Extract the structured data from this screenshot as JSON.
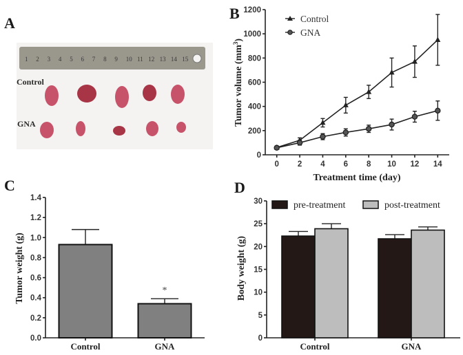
{
  "figure": {
    "panels": [
      "A",
      "B",
      "C",
      "D"
    ]
  },
  "photo": {
    "panel_label": "A",
    "row_labels": [
      "Control",
      "GNA"
    ],
    "ruler_numbers": [
      "1",
      "2",
      "3",
      "4",
      "5",
      "6",
      "7",
      "8",
      "9",
      "10",
      "11",
      "12",
      "13",
      "14",
      "15"
    ],
    "colors": {
      "background": "#f4f3f1",
      "ruler": "#9a978d",
      "tumor": "#c7536a",
      "tumor_dark": "#a83546"
    },
    "tumors_per_row": 5
  },
  "chart_data": [
    {
      "panel_label": "B",
      "type": "line",
      "title": "",
      "xlabel": "Treatment time (day)",
      "ylabel": "Tumor volume (mm3)",
      "ylabel_main": "Tumor volume (mm",
      "ylabel_sup": "3",
      "ylabel_close": ")",
      "x": [
        0,
        2,
        4,
        6,
        8,
        10,
        12,
        14
      ],
      "xlim": [
        -1,
        15
      ],
      "ylim": [
        0,
        1200
      ],
      "xticks": [
        0,
        2,
        4,
        6,
        8,
        10,
        12,
        14
      ],
      "yticks": [
        0,
        200,
        400,
        600,
        800,
        1000,
        1200
      ],
      "grid": false,
      "legend_position": "top-left",
      "series": [
        {
          "name": "Control",
          "marker": "triangle",
          "values": [
            60,
            120,
            265,
            410,
            520,
            680,
            770,
            950
          ],
          "errors": [
            12,
            20,
            35,
            65,
            55,
            120,
            130,
            210
          ]
        },
        {
          "name": "GNA",
          "marker": "circle",
          "values": [
            58,
            100,
            150,
            185,
            215,
            250,
            315,
            365
          ],
          "errors": [
            10,
            20,
            25,
            30,
            30,
            45,
            45,
            80
          ]
        }
      ]
    },
    {
      "panel_label": "C",
      "type": "bar",
      "title": "",
      "xlabel": "",
      "ylabel": "Tumor weight (g)",
      "categories": [
        "Control",
        "GNA"
      ],
      "values": [
        0.93,
        0.34
      ],
      "errors": [
        0.15,
        0.05
      ],
      "ylim": [
        0,
        1.4
      ],
      "yticks": [
        "0.0",
        "0.2",
        "0.4",
        "0.6",
        "0.8",
        "1.0",
        "1.2",
        "1.4"
      ],
      "annotations": [
        {
          "category": "GNA",
          "text": "*"
        }
      ],
      "color": "#808080",
      "grid": false
    },
    {
      "panel_label": "D",
      "type": "bar",
      "title": "",
      "xlabel": "",
      "ylabel": "Body weight (g)",
      "categories": [
        "Control",
        "GNA"
      ],
      "ylim": [
        0,
        30
      ],
      "yticks": [
        "0",
        "5",
        "10",
        "15",
        "20",
        "25",
        "30"
      ],
      "grid": false,
      "legend_position": "top",
      "series": [
        {
          "name": "pre-treatment",
          "values": [
            22.3,
            21.7
          ],
          "errors": [
            1.0,
            0.9
          ],
          "color": "#231815"
        },
        {
          "name": "post-treatment",
          "values": [
            23.9,
            23.6
          ],
          "errors": [
            1.1,
            0.7
          ],
          "color": "#bdbdbd"
        }
      ]
    }
  ]
}
